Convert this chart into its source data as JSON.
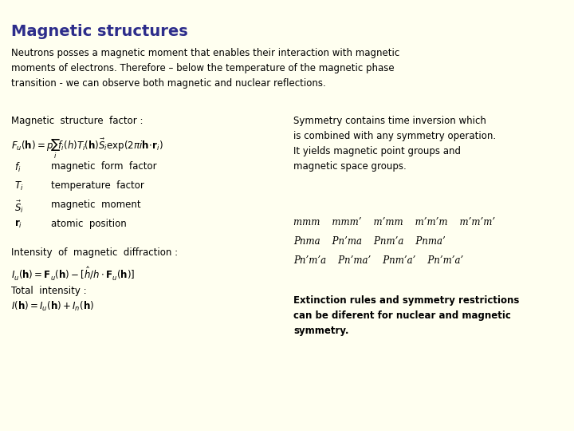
{
  "title": "Magnetic structures",
  "title_color": "#2d2d8b",
  "background_color": "#fffff0",
  "intro_text": "Neutrons posses a magnetic moment that enables their interaction with magnetic\nmoments of electrons. Therefore – below the temperature of the magnetic phase\ntransition - we can observe both magnetic and nuclear reflections.",
  "left_top_label": "Magnetic  structure  factor :",
  "left_items": [
    [
      "$f_i$",
      "magnetic  form  factor"
    ],
    [
      "$T_i$",
      "temperature  factor"
    ],
    [
      "$\\vec{S}_i$",
      "magnetic  moment"
    ],
    [
      "$\\mathbf{r}_i$",
      "atomic  position"
    ]
  ],
  "left_bottom_label": "Intensity  of  magnetic  diffraction :",
  "left_total": "Total  intensity :",
  "right_top_text": "Symmetry contains time inversion which\nis combined with any symmetry operation.\nIt yields magnetic point groups and\nmagnetic space groups.",
  "right_table_row1": "mmm    mmm’    m’mm    m’m’m    m’m’m’",
  "right_table_row2": "Pnma    Pn’ma    Pnm’a    Pnma’",
  "right_table_row3": "Pn’m’a    Pn’ma’    Pnm’a’    Pn’m’a’",
  "right_bottom_text": "Extinction rules and symmetry restrictions\ncan be diferent for nuclear and magnetic\nsymmetry.",
  "text_color": "#000000",
  "formula_color": "#000000"
}
